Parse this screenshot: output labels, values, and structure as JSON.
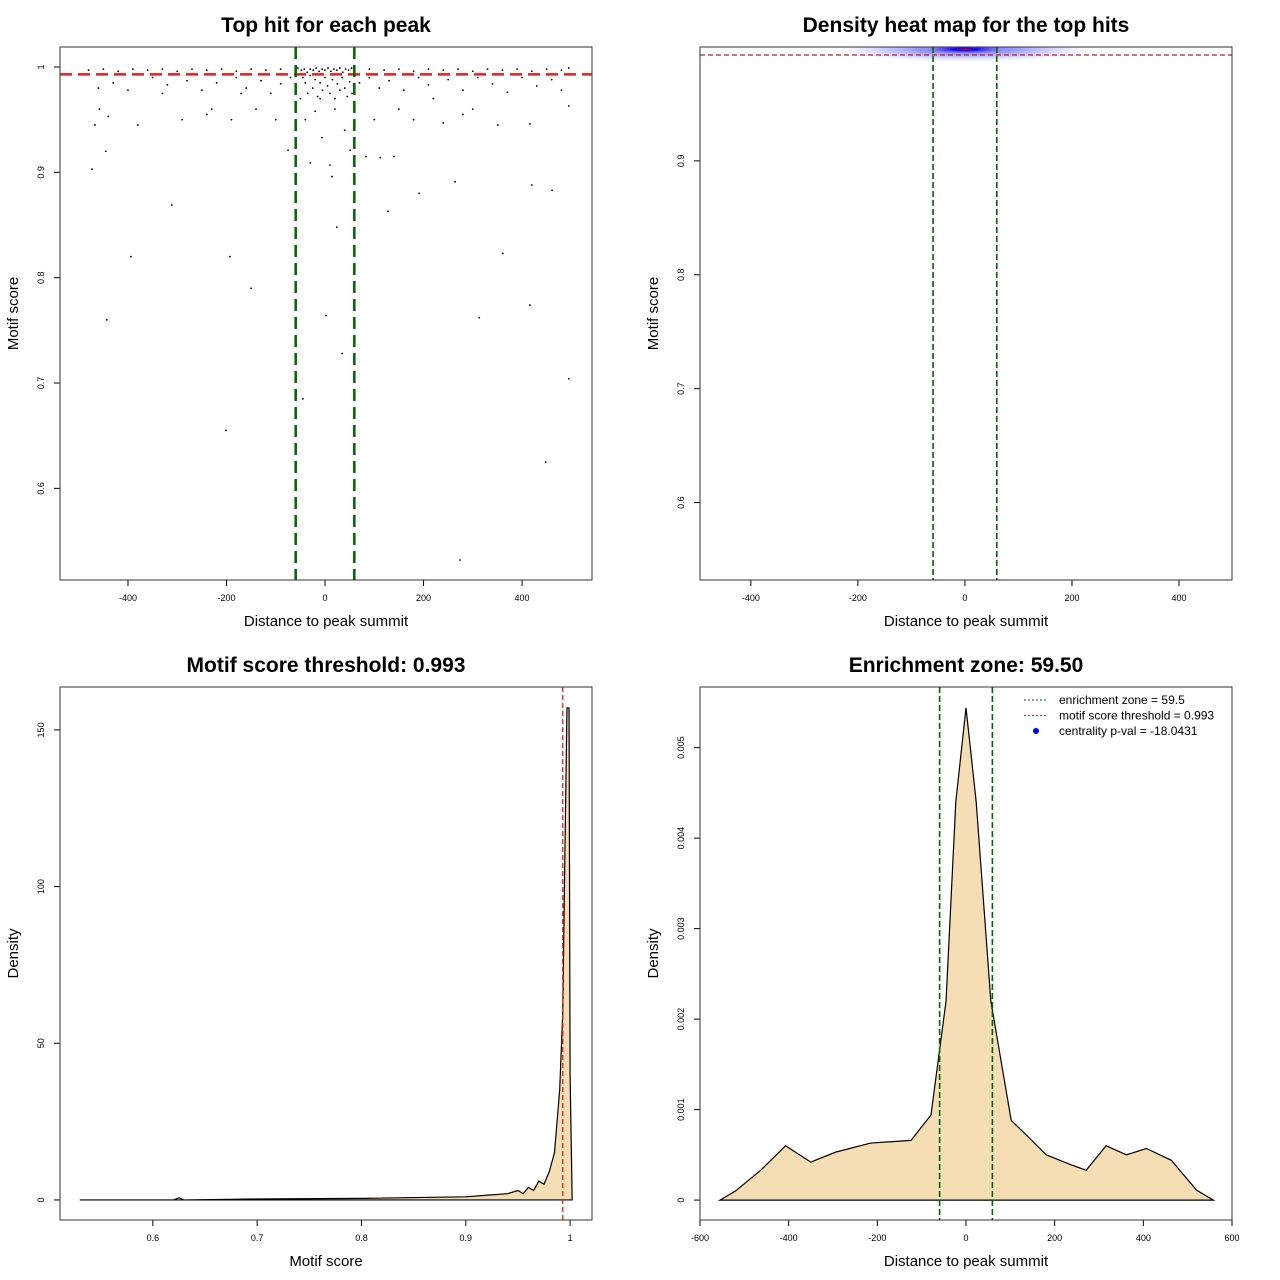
{
  "chart_data": [
    {
      "id": "p1",
      "type": "scatter",
      "title": "Top hit for each peak",
      "xlabel": "Distance to peak summit",
      "ylabel": "Motif score",
      "xlim": [
        -538,
        542
      ],
      "ylim": [
        0.513,
        1.019
      ],
      "xticks": [
        -400,
        -200,
        0,
        200,
        400
      ],
      "yticks": [
        0.6,
        0.7,
        0.8,
        0.9,
        1.0
      ],
      "vlines": [
        -59.5,
        59.5
      ],
      "hline": 0.993,
      "points": [
        [
          -473,
          0.903
        ],
        [
          -394,
          0.82
        ],
        [
          -443,
          0.76
        ],
        [
          -311,
          0.869
        ],
        [
          -193,
          0.82
        ],
        [
          -150,
          0.79
        ],
        [
          -201,
          0.655
        ],
        [
          2,
          0.764
        ],
        [
          24,
          0.848
        ],
        [
          35,
          0.728
        ],
        [
          -45,
          0.685
        ],
        [
          128,
          0.863
        ],
        [
          191,
          0.88
        ],
        [
          264,
          0.891
        ],
        [
          274,
          0.532
        ],
        [
          313,
          0.762
        ],
        [
          361,
          0.823
        ],
        [
          416,
          0.774
        ],
        [
          420,
          0.888
        ],
        [
          461,
          0.883
        ],
        [
          448,
          0.625
        ],
        [
          495,
          0.704
        ],
        [
          -445,
          0.92
        ],
        [
          -467,
          0.945
        ],
        [
          -458,
          0.96
        ],
        [
          -440,
          0.953
        ],
        [
          -380,
          0.945
        ],
        [
          -330,
          0.975
        ],
        [
          -290,
          0.95
        ],
        [
          -240,
          0.955
        ],
        [
          -230,
          0.96
        ],
        [
          -190,
          0.95
        ],
        [
          -170,
          0.975
        ],
        [
          -140,
          0.96
        ],
        [
          10,
          0.907
        ],
        [
          14,
          0.896
        ],
        [
          -30,
          0.909
        ],
        [
          83,
          0.915
        ],
        [
          112,
          0.914
        ],
        [
          140,
          0.915
        ],
        [
          51,
          0.921
        ],
        [
          -75,
          0.921
        ],
        [
          -6,
          0.933
        ],
        [
          -20,
          0.958
        ],
        [
          -40,
          0.95
        ],
        [
          20,
          0.96
        ],
        [
          40,
          0.94
        ],
        [
          -10,
          0.97
        ],
        [
          495,
          0.963
        ],
        [
          416,
          0.946
        ],
        [
          351,
          0.945
        ],
        [
          300,
          0.96
        ],
        [
          280,
          0.955
        ],
        [
          240,
          0.947
        ],
        [
          180,
          0.95
        ],
        [
          150,
          0.96
        ],
        [
          100,
          0.95
        ],
        [
          220,
          0.97
        ],
        [
          -100,
          0.95
        ],
        [
          -460,
          0.98
        ],
        [
          -430,
          0.985
        ],
        [
          -400,
          0.978
        ],
        [
          -350,
          0.99
        ],
        [
          -320,
          0.983
        ],
        [
          -280,
          0.987
        ],
        [
          -250,
          0.978
        ],
        [
          -220,
          0.985
        ],
        [
          -180,
          0.99
        ],
        [
          -160,
          0.98
        ],
        [
          -130,
          0.987
        ],
        [
          -110,
          0.975
        ],
        [
          -90,
          0.984
        ],
        [
          -70,
          0.99
        ],
        [
          -60,
          0.98
        ],
        [
          -50,
          0.97
        ],
        [
          -45,
          0.99
        ],
        [
          -40,
          0.985
        ],
        [
          -35,
          0.975
        ],
        [
          -30,
          0.992
        ],
        [
          -25,
          0.98
        ],
        [
          -20,
          0.988
        ],
        [
          -15,
          0.972
        ],
        [
          -10,
          0.985
        ],
        [
          -5,
          0.978
        ],
        [
          0,
          0.99
        ],
        [
          5,
          0.982
        ],
        [
          10,
          0.975
        ],
        [
          15,
          0.988
        ],
        [
          20,
          0.97
        ],
        [
          25,
          0.984
        ],
        [
          30,
          0.978
        ],
        [
          35,
          0.99
        ],
        [
          40,
          0.98
        ],
        [
          45,
          0.972
        ],
        [
          50,
          0.986
        ],
        [
          55,
          0.975
        ],
        [
          70,
          0.985
        ],
        [
          90,
          0.99
        ],
        [
          110,
          0.98
        ],
        [
          130,
          0.987
        ],
        [
          160,
          0.978
        ],
        [
          190,
          0.99
        ],
        [
          210,
          0.983
        ],
        [
          250,
          0.988
        ],
        [
          280,
          0.978
        ],
        [
          310,
          0.99
        ],
        [
          340,
          0.984
        ],
        [
          370,
          0.976
        ],
        [
          400,
          0.99
        ],
        [
          430,
          0.982
        ],
        [
          460,
          0.988
        ],
        [
          480,
          0.978
        ],
        [
          -480,
          0.997
        ],
        [
          -450,
          0.998
        ],
        [
          -420,
          0.996
        ],
        [
          -390,
          0.998
        ],
        [
          -360,
          0.997
        ],
        [
          -330,
          0.998
        ],
        [
          -300,
          0.996
        ],
        [
          -270,
          0.998
        ],
        [
          -240,
          0.997
        ],
        [
          -210,
          0.998
        ],
        [
          -180,
          0.996
        ],
        [
          -150,
          0.998
        ],
        [
          -120,
          0.997
        ],
        [
          -90,
          0.998
        ],
        [
          -60,
          0.996
        ],
        [
          -55,
          0.999
        ],
        [
          -48,
          0.997
        ],
        [
          -42,
          0.998
        ],
        [
          -36,
          0.995
        ],
        [
          -30,
          0.998
        ],
        [
          -24,
          0.997
        ],
        [
          -18,
          0.999
        ],
        [
          -12,
          0.996
        ],
        [
          -6,
          0.998
        ],
        [
          0,
          0.997
        ],
        [
          6,
          0.999
        ],
        [
          12,
          0.996
        ],
        [
          18,
          0.998
        ],
        [
          24,
          0.997
        ],
        [
          30,
          0.999
        ],
        [
          36,
          0.995
        ],
        [
          42,
          0.998
        ],
        [
          48,
          0.997
        ],
        [
          54,
          0.999
        ],
        [
          60,
          0.996
        ],
        [
          90,
          0.998
        ],
        [
          120,
          0.997
        ],
        [
          150,
          0.998
        ],
        [
          180,
          0.996
        ],
        [
          210,
          0.998
        ],
        [
          240,
          0.997
        ],
        [
          270,
          0.998
        ],
        [
          300,
          0.996
        ],
        [
          330,
          0.998
        ],
        [
          360,
          0.997
        ],
        [
          390,
          0.998
        ],
        [
          420,
          0.996
        ],
        [
          450,
          0.998
        ],
        [
          480,
          0.997
        ],
        [
          495,
          0.999
        ]
      ]
    },
    {
      "id": "p2",
      "type": "heatmap",
      "title": "Density heat map for the top hits",
      "xlabel": "Distance to peak summit",
      "ylabel": "Motif score",
      "xlim": [
        -495,
        499
      ],
      "ylim": [
        0.532,
        1.0
      ],
      "xticks": [
        -400,
        -200,
        0,
        200,
        400
      ],
      "yticks": [
        0.6,
        0.7,
        0.8,
        0.9
      ],
      "vlines": [
        -59.5,
        59.5
      ],
      "hline": 0.993,
      "peak": {
        "x": 0,
        "y": 0.998
      },
      "colors": [
        "#ffffff",
        "#0000ff",
        "#ff0000"
      ]
    },
    {
      "id": "p3",
      "type": "area",
      "title": "Motif score threshold: 0.993",
      "xlabel": "Motif score",
      "ylabel": "Density",
      "xlim": [
        0.511,
        1.021
      ],
      "ylim": [
        -6.4,
        163.7
      ],
      "xticks": [
        0.6,
        0.7,
        0.8,
        0.9,
        1.0
      ],
      "yticks": [
        0,
        50,
        100,
        150
      ],
      "vline": 0.993,
      "x": [
        0.53,
        0.6,
        0.62,
        0.625,
        0.63,
        0.7,
        0.8,
        0.9,
        0.92,
        0.94,
        0.95,
        0.955,
        0.96,
        0.965,
        0.97,
        0.975,
        0.98,
        0.985,
        0.99,
        0.993,
        0.995,
        0.997,
        0.999,
        1.0,
        1.002
      ],
      "y": [
        0,
        0,
        0,
        0.7,
        0,
        0.3,
        0.5,
        1,
        1.5,
        2,
        3,
        2,
        4,
        3,
        6,
        5,
        9,
        15,
        35,
        60,
        110,
        157,
        157,
        40,
        0
      ]
    },
    {
      "id": "p4",
      "type": "area",
      "title": "Enrichment zone: 59.50",
      "xlabel": "Distance to peak summit",
      "ylabel": "Density",
      "xlim": [
        -600,
        600
      ],
      "ylim": [
        -0.00022,
        0.00567
      ],
      "xticks": [
        -600,
        -400,
        -200,
        0,
        200,
        400,
        600
      ],
      "yticks": [
        0,
        0.001,
        0.002,
        0.003,
        0.004,
        0.005
      ],
      "vlines": [
        -59.5,
        59.5
      ],
      "x": [
        -555,
        -520,
        -463,
        -407,
        -350,
        -294,
        -215,
        -124,
        -79,
        -45,
        -23,
        0,
        23,
        56,
        102,
        136,
        181,
        237,
        271,
        316,
        362,
        407,
        463,
        520,
        558
      ],
      "y": [
        0,
        0.0001,
        0.00033,
        0.0006,
        0.00042,
        0.00053,
        0.00063,
        0.00066,
        0.00094,
        0.0022,
        0.0044,
        0.00544,
        0.0044,
        0.0022,
        0.00088,
        0.00072,
        0.0005,
        0.00039,
        0.00033,
        0.0006,
        0.0005,
        0.00057,
        0.00044,
        0.00011,
        0
      ],
      "legend": {
        "position": "top-right",
        "items": [
          "enrichment zone = 59.5",
          "motif score threshold = 0.993",
          "centrality p-val = -18.0431"
        ]
      }
    }
  ]
}
